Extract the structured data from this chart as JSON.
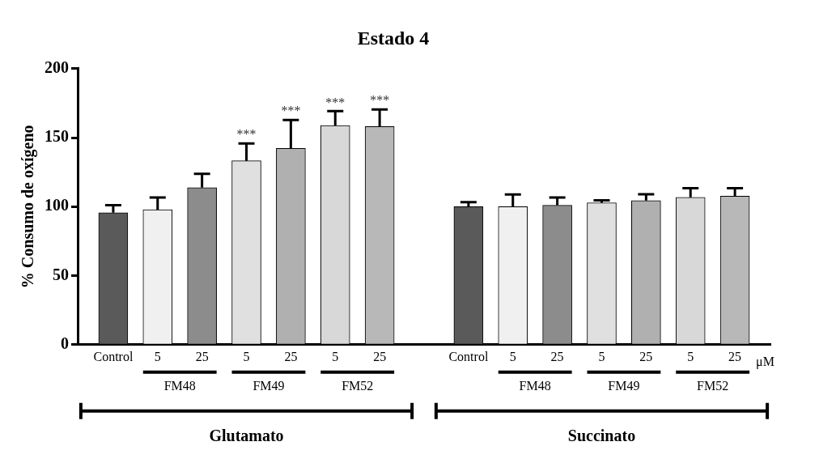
{
  "chart_data": {
    "type": "bar",
    "title": "Estado 4",
    "ylabel": "% Consumo de oxígeno",
    "categories": [
      "Control",
      "5",
      "25",
      "5",
      "25",
      "5",
      "25",
      "Control",
      "5",
      "25",
      "5",
      "25",
      "5",
      "25"
    ],
    "values": [
      95.6,
      97.8,
      113.8,
      133.2,
      142.2,
      158.8,
      158,
      100,
      100,
      101,
      102.8,
      104.4,
      106.8,
      107.6
    ],
    "errors": [
      [
        95.6,
        101
      ],
      [
        97.8,
        106.6
      ],
      [
        113.8,
        123.8
      ],
      [
        133.2,
        145.8
      ],
      [
        142.2,
        162.8
      ],
      [
        158.8,
        169.2
      ],
      [
        158,
        170.4
      ],
      [
        100,
        103.2
      ],
      [
        100,
        108.8
      ],
      [
        101,
        106.6
      ],
      [
        102.8,
        104.6
      ],
      [
        104.4,
        109
      ],
      [
        106.8,
        113.4
      ],
      [
        107.6,
        113.4
      ]
    ],
    "value_labels": [
      null,
      null,
      null,
      "***",
      "***",
      "***",
      "***",
      null,
      null,
      null,
      null,
      null,
      null,
      null
    ],
    "colors": [
      "#5a5a5a",
      "#f0f0f0",
      "#8c8c8c",
      "#e0e0e0",
      "#b0b0b0",
      "#d8d8d8",
      "#b8b8b8",
      "#5a5a5a",
      "#f0f0f0",
      "#8c8c8c",
      "#e0e0e0",
      "#b0b0b0",
      "#d8d8d8",
      "#b8b8b8"
    ],
    "ylim": [
      0,
      200
    ],
    "yticks": [
      0,
      50,
      100,
      150,
      200
    ],
    "grid": false,
    "legend": false,
    "annotations": [
      "μM",
      "FM48",
      "FM49",
      "FM52",
      "FM48",
      "FM49",
      "FM52",
      "Glutamato",
      "Succinato"
    ]
  }
}
